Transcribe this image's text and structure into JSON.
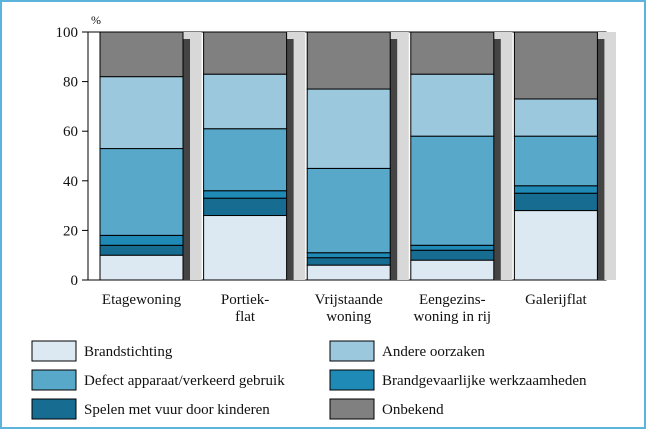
{
  "chart_data": {
    "type": "stacked_bar",
    "y_unit": "%",
    "categories": [
      [
        "Etagewoning"
      ],
      [
        "Portiek-",
        "flat"
      ],
      [
        "Vrijstaande",
        "woning"
      ],
      [
        "Eengezins-",
        "woning in rij"
      ],
      [
        "Galerijflat"
      ]
    ],
    "series": [
      {
        "name": "Brandstichting",
        "color": "#dde9f2",
        "values": [
          10,
          26,
          6,
          8,
          28
        ]
      },
      {
        "name": "Spelen met vuur door kinderen",
        "color": "#176c92",
        "values": [
          4,
          7,
          3,
          4,
          7
        ]
      },
      {
        "name": "Brandgevaarlijke werkzaamheden",
        "color": "#1f8ab6",
        "values": [
          4,
          3,
          2,
          2,
          3
        ]
      },
      {
        "name": "Defect apparaat/verkeerd gebruik",
        "color": "#58a8ca",
        "values": [
          35,
          25,
          34,
          44,
          20
        ]
      },
      {
        "name": "Andere oorzaken",
        "color": "#9cc8de",
        "values": [
          29,
          22,
          32,
          25,
          15
        ]
      },
      {
        "name": "Onbekend",
        "color": "#808080",
        "values": [
          18,
          17,
          23,
          17,
          27
        ]
      }
    ],
    "ylim": [
      0,
      100
    ],
    "yticks": [
      0,
      20,
      40,
      60,
      80,
      100
    ]
  }
}
